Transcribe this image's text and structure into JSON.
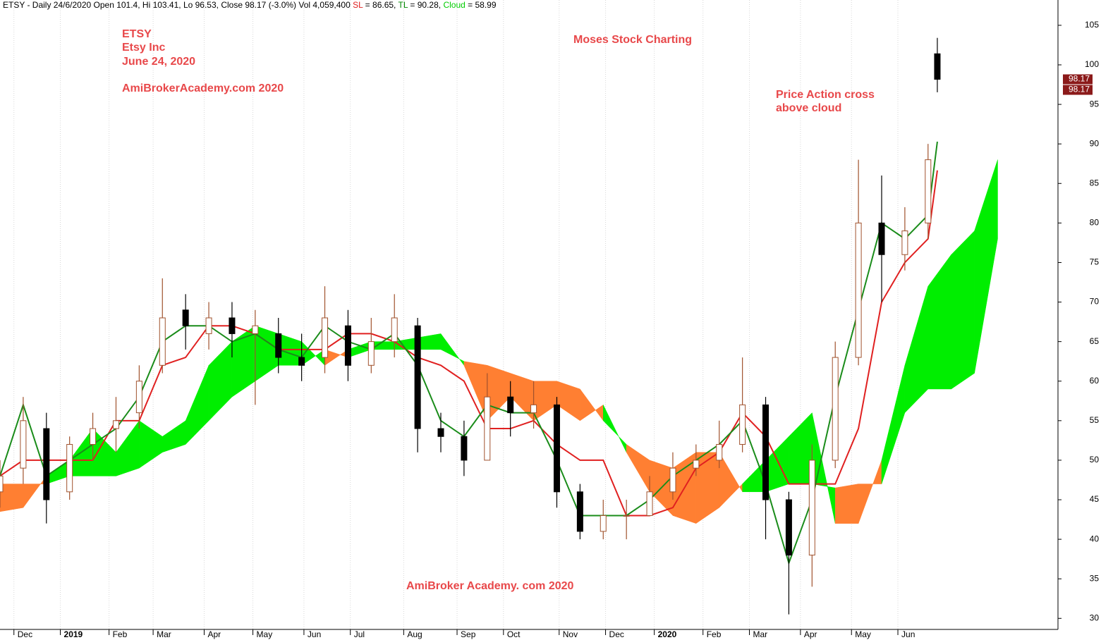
{
  "chart_data": {
    "type": "candlestick",
    "header": [
      {
        "text": "ETSY - Daily 24/6/2020 Open 101.4, Hi 103.41, Lo 96.53, Close 98.17 (-3.0%) Vol 4,059,400 ",
        "color": "#000000"
      },
      {
        "text": "SL",
        "color": "#e02020"
      },
      {
        "text": " = 86.65, ",
        "color": "#000000"
      },
      {
        "text": "TL",
        "color": "#008800"
      },
      {
        "text": " = 90.28, ",
        "color": "#000000"
      },
      {
        "text": "Cloud",
        "color": "#00cc00"
      },
      {
        "text": " = 58.99",
        "color": "#000000"
      }
    ],
    "annotations": {
      "symbol": "ETSY",
      "company": "Etsy Inc",
      "date": "June 24, 2020",
      "site": "AmiBrokerAcademy.com  2020",
      "brand": "Moses Stock Charting",
      "note_1": "Price Action cross",
      "note_2": "above cloud",
      "footer": "AmiBroker Academy. com  2020",
      "color": "#e8484a"
    },
    "xlim": [
      0,
      456
    ],
    "xticks": [
      {
        "value": 6,
        "label": "Dec"
      },
      {
        "value": 26,
        "label": "2019"
      },
      {
        "value": 47,
        "label": "Feb"
      },
      {
        "value": 66,
        "label": "Mar"
      },
      {
        "value": 88,
        "label": "Apr"
      },
      {
        "value": 109,
        "label": "May"
      },
      {
        "value": 131,
        "label": "Jun"
      },
      {
        "value": 151,
        "label": "Jul"
      },
      {
        "value": 174,
        "label": "Aug"
      },
      {
        "value": 197,
        "label": "Sep"
      },
      {
        "value": 217,
        "label": "Oct"
      },
      {
        "value": 241,
        "label": "Nov"
      },
      {
        "value": 261,
        "label": "Dec"
      },
      {
        "value": 282,
        "label": "2020"
      },
      {
        "value": 303,
        "label": "Feb"
      },
      {
        "value": 323,
        "label": "Mar"
      },
      {
        "value": 345,
        "label": "Apr"
      },
      {
        "value": 367,
        "label": "May"
      },
      {
        "value": 387,
        "label": "Jun"
      }
    ],
    "ylim": [
      28.6,
      108.2
    ],
    "yticks": [
      30,
      35,
      40,
      45,
      50,
      55,
      60,
      65,
      70,
      75,
      80,
      85,
      90,
      95,
      100,
      105
    ],
    "grid": true,
    "x": [
      0,
      10,
      20,
      30,
      40,
      50,
      60,
      70,
      80,
      90,
      100,
      110,
      120,
      130,
      140,
      150,
      160,
      170,
      180,
      190,
      200,
      210,
      220,
      230,
      240,
      250,
      260,
      270,
      280,
      290,
      300,
      310,
      320,
      330,
      340,
      350,
      360,
      370,
      380,
      390,
      400,
      404
    ],
    "open": [
      46,
      49,
      54,
      46,
      52,
      54,
      56,
      62,
      69,
      66,
      68,
      66,
      66,
      63,
      63,
      67,
      62,
      65,
      67,
      54,
      53,
      50,
      58,
      56,
      57,
      46,
      41,
      43,
      43,
      46,
      49,
      50,
      52,
      57,
      45,
      38,
      50,
      63,
      80,
      76,
      80,
      101.4
    ],
    "high": [
      50,
      58,
      56,
      53,
      56,
      58,
      62,
      73,
      71,
      70,
      70,
      69,
      68,
      66,
      72,
      69,
      68,
      71,
      68,
      56,
      55,
      61,
      60,
      60,
      58,
      47,
      45,
      45,
      48,
      51,
      52,
      55,
      63,
      58,
      46,
      52,
      65,
      88,
      86,
      82,
      90,
      103.41
    ],
    "low": [
      44,
      47,
      42,
      45,
      50,
      51,
      54,
      61,
      64,
      64,
      63,
      57,
      61,
      60,
      61,
      60,
      61,
      63,
      51,
      51,
      48,
      50,
      53,
      54,
      44,
      40,
      40,
      40,
      43,
      45,
      48,
      49,
      51,
      40,
      30.5,
      34,
      49,
      62,
      70,
      74,
      78,
      96.53
    ],
    "close": [
      48,
      55,
      45,
      52,
      54,
      55,
      60,
      68,
      67,
      68,
      66,
      67,
      63,
      62,
      68,
      62,
      65,
      68,
      54,
      53,
      50,
      58,
      56,
      57,
      46,
      41,
      43,
      43,
      46,
      49,
      50,
      52,
      57,
      45,
      38,
      50,
      63,
      80,
      76,
      79,
      88,
      98.17
    ],
    "candle_colors": {
      "up": "#a0522d",
      "down": "#000000"
    },
    "series": [
      {
        "name": "SL",
        "color": "#e02020",
        "values": [
          48,
          50,
          50,
          50,
          50,
          55,
          55,
          62,
          63,
          67,
          67,
          66,
          64,
          64,
          64,
          66,
          66,
          65,
          63,
          62,
          60,
          54,
          54,
          55,
          52,
          50,
          50,
          43,
          43,
          44,
          49,
          51,
          56,
          53,
          47,
          47,
          47,
          54,
          70,
          75,
          78,
          86.65
        ]
      },
      {
        "name": "TL",
        "color": "#1a8c1a",
        "values": [
          48,
          57,
          48,
          50,
          52,
          54,
          58,
          65,
          67,
          67,
          65,
          66,
          64,
          63,
          67,
          65,
          64,
          66,
          62,
          55,
          53,
          57,
          56,
          56,
          50,
          43,
          43,
          43,
          45,
          48,
          50,
          52,
          55,
          47,
          37,
          45,
          58,
          69,
          80,
          78,
          81,
          90.28
        ]
      }
    ],
    "cloud": {
      "x": [
        0,
        10,
        20,
        30,
        40,
        50,
        60,
        70,
        80,
        90,
        100,
        110,
        120,
        130,
        140,
        150,
        160,
        170,
        180,
        190,
        200,
        210,
        220,
        230,
        240,
        250,
        260,
        270,
        280,
        290,
        300,
        310,
        320,
        330,
        340,
        350,
        360,
        370,
        380,
        390,
        400,
        410,
        420,
        430
      ],
      "span_a": [
        43.5,
        44,
        48,
        50,
        54,
        51,
        55,
        53,
        55,
        62,
        65,
        67,
        66,
        65,
        62,
        64,
        65,
        65,
        65.5,
        66,
        62,
        55,
        58,
        55,
        57,
        55,
        57,
        51,
        46,
        43,
        42,
        44,
        47,
        50,
        53,
        56,
        42,
        42,
        50,
        62,
        72,
        76,
        79,
        88
      ],
      "span_b": [
        47,
        47,
        47,
        48,
        48,
        48,
        49,
        51,
        52,
        55,
        58,
        60,
        62,
        62,
        64,
        63,
        64,
        64,
        64,
        64,
        62.5,
        62,
        61,
        60,
        60,
        59,
        55,
        52,
        50,
        49,
        51,
        51,
        46,
        46,
        47,
        47,
        46.5,
        47,
        47,
        56,
        59,
        59,
        61,
        78
      ],
      "colors": {
        "up": "#00ee00",
        "down": "#ff7f32"
      }
    },
    "price_tags": [
      98.17,
      98.17
    ],
    "price_tag_color": "#8b1a1a"
  }
}
